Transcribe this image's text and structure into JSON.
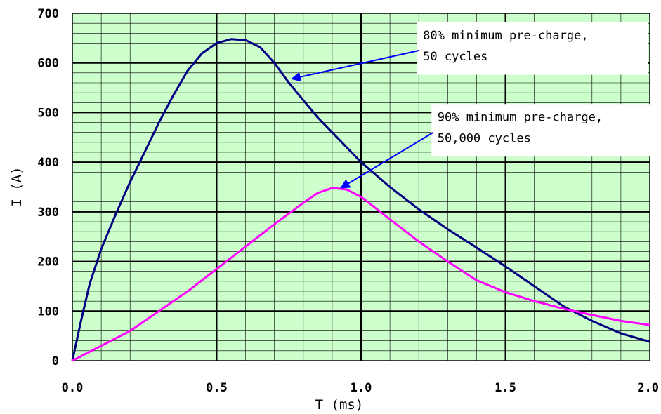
{
  "chart_data": {
    "type": "line",
    "title": "",
    "xlabel": "T (ms)",
    "ylabel": "I (A)",
    "xlim": [
      0,
      2
    ],
    "ylim": [
      0,
      700
    ],
    "x_ticks": [
      "0.0",
      "0.5",
      "1.0",
      "1.5",
      "2.0"
    ],
    "y_ticks": [
      "0",
      "100",
      "200",
      "300",
      "400",
      "500",
      "600",
      "700"
    ],
    "grid": true,
    "background_color": "#ccffcc",
    "series": [
      {
        "color": "#000080",
        "points": [
          [
            0,
            0
          ],
          [
            0.03,
            80
          ],
          [
            0.06,
            155
          ],
          [
            0.1,
            225
          ],
          [
            0.15,
            295
          ],
          [
            0.2,
            360
          ],
          [
            0.25,
            420
          ],
          [
            0.3,
            480
          ],
          [
            0.35,
            535
          ],
          [
            0.4,
            585
          ],
          [
            0.45,
            620
          ],
          [
            0.5,
            640
          ],
          [
            0.55,
            648
          ],
          [
            0.6,
            646
          ],
          [
            0.65,
            632
          ],
          [
            0.7,
            600
          ],
          [
            0.75,
            560
          ],
          [
            0.8,
            525
          ],
          [
            0.85,
            490
          ],
          [
            0.9,
            460
          ],
          [
            1.0,
            400
          ],
          [
            1.1,
            350
          ],
          [
            1.2,
            305
          ],
          [
            1.3,
            265
          ],
          [
            1.4,
            228
          ],
          [
            1.5,
            190
          ],
          [
            1.6,
            150
          ],
          [
            1.7,
            110
          ],
          [
            1.8,
            80
          ],
          [
            1.9,
            55
          ],
          [
            2.0,
            38
          ]
        ]
      },
      {
        "color": "#ff00ff",
        "points": [
          [
            0,
            0
          ],
          [
            0.1,
            30
          ],
          [
            0.2,
            60
          ],
          [
            0.3,
            100
          ],
          [
            0.4,
            140
          ],
          [
            0.5,
            185
          ],
          [
            0.6,
            230
          ],
          [
            0.7,
            275
          ],
          [
            0.8,
            318
          ],
          [
            0.85,
            338
          ],
          [
            0.9,
            348
          ],
          [
            0.95,
            345
          ],
          [
            1.0,
            330
          ],
          [
            1.1,
            285
          ],
          [
            1.2,
            240
          ],
          [
            1.3,
            200
          ],
          [
            1.4,
            162
          ],
          [
            1.5,
            138
          ],
          [
            1.6,
            120
          ],
          [
            1.7,
            105
          ],
          [
            1.8,
            92
          ],
          [
            1.9,
            80
          ],
          [
            2.0,
            72
          ]
        ]
      }
    ],
    "annotations": [
      {
        "lines": [
          "80% minimum pre-charge,",
          "50 cycles"
        ],
        "arrow_from": [
          1.2,
          625
        ],
        "arrow_to": [
          0.76,
          568
        ]
      },
      {
        "lines": [
          "90% minimum pre-charge,",
          "50,000 cycles"
        ],
        "arrow_from": [
          1.25,
          460
        ],
        "arrow_to": [
          0.93,
          348
        ]
      }
    ]
  }
}
